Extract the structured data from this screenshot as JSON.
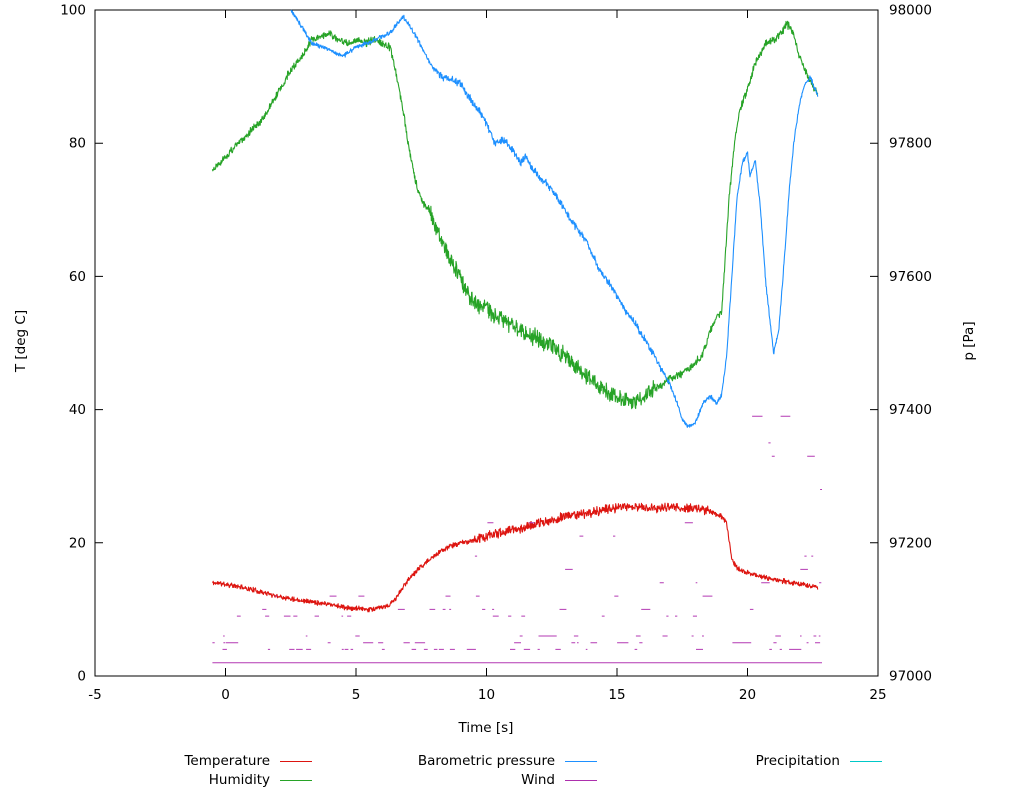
{
  "chart_data": {
    "type": "line",
    "title": "",
    "axes": {
      "x": {
        "label": "Time [s]",
        "min": -5,
        "max": 25,
        "ticks": [
          -5,
          0,
          5,
          10,
          15,
          20,
          25
        ]
      },
      "y_left": {
        "label": "T [deg C]",
        "min": 0,
        "max": 100,
        "ticks": [
          0,
          20,
          40,
          60,
          80,
          100
        ]
      },
      "y_right": {
        "label": "p [Pa]",
        "min": 97000,
        "max": 98000,
        "ticks": [
          97000,
          97200,
          97400,
          97600,
          97800,
          98000
        ]
      }
    },
    "legend": [
      {
        "label": "Temperature",
        "color": "#dd1510"
      },
      {
        "label": "Humidity",
        "color": "#27a327"
      },
      {
        "label": "Barometric pressure",
        "color": "#1e90ff"
      },
      {
        "label": "Wind",
        "color": "#ad2fad"
      },
      {
        "label": "Precipitation",
        "color": "#00c8c8"
      }
    ],
    "series": [
      {
        "name": "Temperature",
        "type": "noisy_line",
        "axis": "left",
        "color": "#dd1510",
        "noise": 0.45,
        "noise_zone": [
          9.5,
          18.5,
          1.8
        ],
        "seed": 11,
        "keypoints": [
          [
            -0.5,
            14
          ],
          [
            0,
            13.8
          ],
          [
            1,
            13
          ],
          [
            2,
            12
          ],
          [
            3,
            11.3
          ],
          [
            4,
            10.8
          ],
          [
            4.7,
            10.2
          ],
          [
            5.5,
            10
          ],
          [
            6.2,
            10.4
          ],
          [
            6.5,
            11.5
          ],
          [
            7,
            14.5
          ],
          [
            7.5,
            16.5
          ],
          [
            8,
            18
          ],
          [
            8.5,
            19.3
          ],
          [
            9,
            20
          ],
          [
            9.5,
            20.3
          ],
          [
            10,
            21
          ],
          [
            10.5,
            21.5
          ],
          [
            11,
            22
          ],
          [
            11.5,
            22.3
          ],
          [
            12,
            23
          ],
          [
            12.5,
            23.2
          ],
          [
            13,
            24
          ],
          [
            13.5,
            24.2
          ],
          [
            14,
            24.5
          ],
          [
            14.5,
            25
          ],
          [
            15,
            25.2
          ],
          [
            15.5,
            25.5
          ],
          [
            16,
            25.3
          ],
          [
            16.5,
            25.2
          ],
          [
            17,
            25.3
          ],
          [
            17.5,
            25.2
          ],
          [
            18,
            25.3
          ],
          [
            18.5,
            24.8
          ],
          [
            19,
            24
          ],
          [
            19.2,
            23
          ],
          [
            19.4,
            17.5
          ],
          [
            19.6,
            16.2
          ],
          [
            20,
            15.5
          ],
          [
            20.5,
            15
          ],
          [
            21,
            14.5
          ],
          [
            21.5,
            14.2
          ],
          [
            22,
            13.8
          ],
          [
            22.7,
            13.2
          ]
        ]
      },
      {
        "name": "Humidity",
        "type": "noisy_line",
        "axis": "left",
        "color": "#27a327",
        "noise": 0.7,
        "noise_zone": [
          7.8,
          16.5,
          2.2
        ],
        "seed": 22,
        "keypoints": [
          [
            -0.5,
            76
          ],
          [
            0,
            78
          ],
          [
            0.5,
            80
          ],
          [
            1,
            82
          ],
          [
            1.5,
            84
          ],
          [
            2,
            87.5
          ],
          [
            2.5,
            91
          ],
          [
            3,
            93.5
          ],
          [
            3.3,
            95.5
          ],
          [
            3.7,
            96
          ],
          [
            4,
            96.5
          ],
          [
            4.3,
            95.5
          ],
          [
            4.7,
            95
          ],
          [
            5,
            95.5
          ],
          [
            5.3,
            95
          ],
          [
            5.7,
            95.5
          ],
          [
            6,
            95
          ],
          [
            6.3,
            94.5
          ],
          [
            6.5,
            91
          ],
          [
            6.8,
            85
          ],
          [
            7,
            80
          ],
          [
            7.3,
            74
          ],
          [
            7.5,
            71.5
          ],
          [
            7.8,
            70
          ],
          [
            8,
            68
          ],
          [
            8.3,
            65
          ],
          [
            8.7,
            62
          ],
          [
            9,
            60
          ],
          [
            9.3,
            57
          ],
          [
            9.7,
            55.5
          ],
          [
            10,
            55.5
          ],
          [
            10.3,
            54
          ],
          [
            10.7,
            53.5
          ],
          [
            11,
            52.5
          ],
          [
            11.5,
            51.5
          ],
          [
            12,
            50.5
          ],
          [
            12.5,
            49.5
          ],
          [
            13,
            48
          ],
          [
            13.3,
            47
          ],
          [
            13.7,
            45.5
          ],
          [
            14,
            44.5
          ],
          [
            14.3,
            43.5
          ],
          [
            14.7,
            42.5
          ],
          [
            15,
            42
          ],
          [
            15.3,
            41.5
          ],
          [
            15.7,
            41
          ],
          [
            16,
            42
          ],
          [
            16.3,
            43
          ],
          [
            16.7,
            43.5
          ],
          [
            17,
            44.5
          ],
          [
            17.3,
            45
          ],
          [
            17.7,
            46
          ],
          [
            18,
            47
          ],
          [
            18.3,
            48.5
          ],
          [
            18.6,
            52
          ],
          [
            18.8,
            54
          ],
          [
            19,
            54.5
          ],
          [
            19.1,
            60
          ],
          [
            19.3,
            72
          ],
          [
            19.5,
            80
          ],
          [
            19.7,
            85
          ],
          [
            20,
            88
          ],
          [
            20.3,
            92
          ],
          [
            20.7,
            95
          ],
          [
            21,
            95.5
          ],
          [
            21.3,
            96.5
          ],
          [
            21.5,
            98
          ],
          [
            21.7,
            97
          ],
          [
            22,
            93
          ],
          [
            22.3,
            90
          ],
          [
            22.5,
            88.5
          ],
          [
            22.7,
            87.5
          ]
        ]
      },
      {
        "name": "Barometric pressure",
        "type": "noisy_line",
        "axis": "right",
        "color": "#1e90ff",
        "noise": 4,
        "noise_zone": [
          8,
          17,
          1.6
        ],
        "seed": 33,
        "keypoints": [
          [
            2.5,
            98000
          ],
          [
            3,
            97970
          ],
          [
            3.3,
            97950
          ],
          [
            3.7,
            97945
          ],
          [
            4,
            97940
          ],
          [
            4.5,
            97930
          ],
          [
            5,
            97945
          ],
          [
            5.5,
            97950
          ],
          [
            6,
            97960
          ],
          [
            6.3,
            97965
          ],
          [
            6.6,
            97980
          ],
          [
            6.8,
            97990
          ],
          [
            7,
            97980
          ],
          [
            7.3,
            97960
          ],
          [
            7.7,
            97930
          ],
          [
            8,
            97910
          ],
          [
            8.3,
            97900
          ],
          [
            8.7,
            97895
          ],
          [
            9,
            97890
          ],
          [
            9.3,
            97870
          ],
          [
            9.7,
            97850
          ],
          [
            10,
            97830
          ],
          [
            10.3,
            97800
          ],
          [
            10.7,
            97805
          ],
          [
            11,
            97790
          ],
          [
            11.3,
            97770
          ],
          [
            11.5,
            97780
          ],
          [
            11.8,
            97760
          ],
          [
            12,
            97750
          ],
          [
            12.3,
            97740
          ],
          [
            12.7,
            97720
          ],
          [
            13,
            97700
          ],
          [
            13.3,
            97680
          ],
          [
            13.7,
            97660
          ],
          [
            14,
            97640
          ],
          [
            14.3,
            97610
          ],
          [
            14.7,
            97590
          ],
          [
            15,
            97570
          ],
          [
            15.3,
            97550
          ],
          [
            15.7,
            97530
          ],
          [
            16,
            97510
          ],
          [
            16.3,
            97490
          ],
          [
            16.7,
            97460
          ],
          [
            17,
            97440
          ],
          [
            17.3,
            97410
          ],
          [
            17.5,
            97385
          ],
          [
            17.7,
            97375
          ],
          [
            18,
            97380
          ],
          [
            18.3,
            97410
          ],
          [
            18.6,
            97420
          ],
          [
            18.8,
            97410
          ],
          [
            19,
            97420
          ],
          [
            19.2,
            97480
          ],
          [
            19.4,
            97600
          ],
          [
            19.6,
            97720
          ],
          [
            19.8,
            97770
          ],
          [
            20,
            97785
          ],
          [
            20.1,
            97750
          ],
          [
            20.3,
            97775
          ],
          [
            20.5,
            97700
          ],
          [
            20.7,
            97590
          ],
          [
            20.9,
            97520
          ],
          [
            21,
            97485
          ],
          [
            21.2,
            97520
          ],
          [
            21.4,
            97620
          ],
          [
            21.6,
            97730
          ],
          [
            21.8,
            97810
          ],
          [
            22,
            97860
          ],
          [
            22.2,
            97890
          ],
          [
            22.4,
            97900
          ],
          [
            22.5,
            97890
          ],
          [
            22.7,
            97870
          ]
        ]
      },
      {
        "name": "Wind",
        "type": "quantized_dots",
        "axis": "left",
        "color": "#b339b3",
        "seed": 44,
        "x_range": [
          -0.5,
          22.8
        ],
        "levels": [
          2,
          4,
          5,
          6,
          9,
          10,
          12,
          14,
          16,
          18,
          21,
          23,
          25,
          28,
          30,
          33,
          35,
          39,
          44
        ],
        "baseline_level": 2,
        "calm_max_index": 6,
        "mid_zone": [
          9,
          18.8
        ],
        "mid_max_index": 11,
        "storm_zone": [
          19,
          22.8
        ],
        "storm_max_index": 18
      },
      {
        "name": "Precipitation",
        "type": "none",
        "axis": "left",
        "color": "#00c8c8",
        "keypoints": []
      }
    ]
  },
  "labels": {
    "x_axis": "Time [s]",
    "y_left": "T [deg C]",
    "y_right": "p [Pa]"
  }
}
